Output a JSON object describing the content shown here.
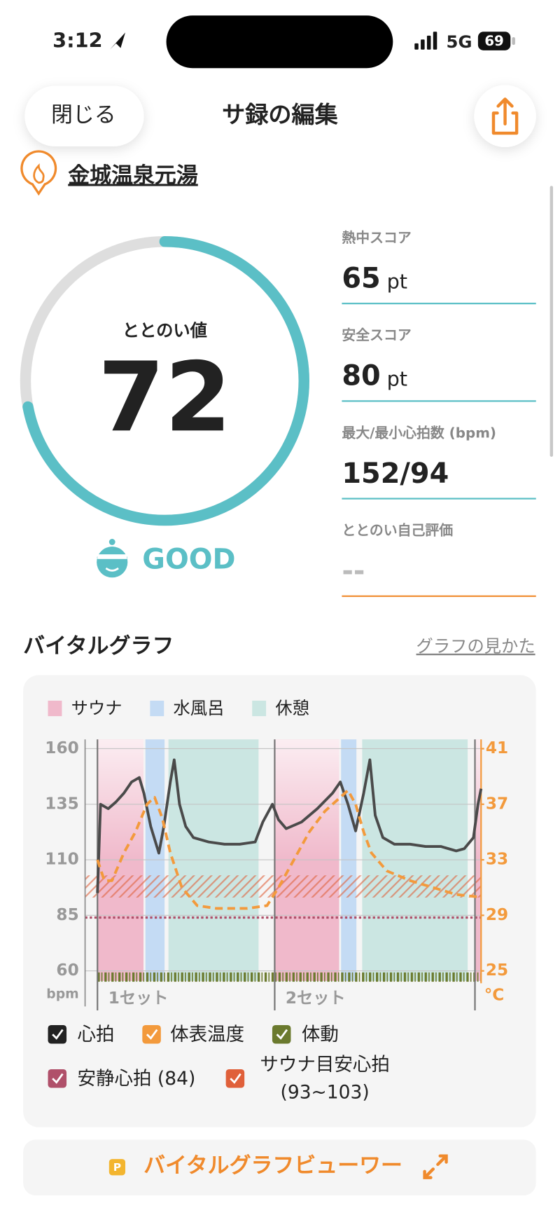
{
  "status_bar": {
    "time": "3:12",
    "network": "5G",
    "battery": "69"
  },
  "header": {
    "close_button": "閉じる",
    "title": "サ録の編集"
  },
  "venue": "金城温泉元湯",
  "totonoi": {
    "label": "ととのい値",
    "value": 72,
    "rating": "GOOD"
  },
  "stats": [
    {
      "label": "熱中スコア",
      "value": 65,
      "unit": "pt"
    },
    {
      "label": "安全スコア",
      "value": 80,
      "unit": "pt"
    },
    {
      "label": "最大/最小心拍数 (bpm)",
      "value": "152/94"
    },
    {
      "label": "ととのい自己評価",
      "value": "--"
    }
  ],
  "vital_graph": {
    "title": "バイタルグラフ",
    "help_link": "グラフの見かた",
    "phase_legend": [
      {
        "name": "サウナ",
        "color": "#f0b9cb"
      },
      {
        "name": "水風呂",
        "color": "#c4dbf4"
      },
      {
        "name": "休憩",
        "color": "#cbe6e2"
      }
    ],
    "chart": {
      "type": "line",
      "ylim": [
        60,
        160
      ],
      "yticks": [
        60,
        85,
        110,
        135,
        160
      ],
      "y_label": "bpm",
      "y2lim": [
        25,
        41
      ],
      "y2ticks": [
        25,
        29,
        33,
        37,
        41
      ],
      "y2_label": "°C",
      "xlim": [
        0,
        100
      ],
      "sets": [
        0,
        46.2,
        98.4
      ],
      "set_labels": [
        "1セット",
        "2セット",
        null
      ],
      "phases": [
        {
          "phase": 0,
          "start": 0,
          "end": 12
        },
        {
          "phase": 1,
          "start": 12.5,
          "end": 17.5
        },
        {
          "phase": 2,
          "start": 18.5,
          "end": 42
        },
        {
          "phase": 0,
          "start": 46,
          "end": 63
        },
        {
          "phase": 1,
          "start": 63.5,
          "end": 67.5
        },
        {
          "phase": 2,
          "start": 69,
          "end": 96.5
        },
        {
          "phase": 0,
          "start": 98.5,
          "end": 100
        }
      ],
      "series": [
        {
          "name": "心拍",
          "color": "#4a4a4a",
          "checkbox_color": "#222222",
          "x": [
            0,
            0.8,
            2.8,
            4.8,
            6.9,
            8.9,
            10.9,
            12.1,
            13.9,
            16.0,
            17.3,
            19.0,
            20.0,
            21.4,
            23.0,
            25.0,
            29.0,
            33.1,
            37.1,
            41.1,
            43.1,
            45.6,
            47.2,
            49.2,
            53.2,
            57.3,
            61.3,
            63.3,
            65.3,
            67.3,
            69.4,
            71.0,
            72.4,
            74.4,
            77.4,
            81.5,
            85.5,
            89.5,
            93.5,
            95.6,
            98.0,
            99.2,
            100
          ],
          "values": [
            95,
            135,
            133,
            136,
            140,
            145,
            147,
            140,
            125,
            113,
            125,
            145,
            155,
            135,
            125,
            120,
            118,
            117,
            117,
            118,
            127,
            135,
            128,
            124,
            127,
            133,
            140,
            145,
            135,
            123,
            140,
            155,
            130,
            120,
            117,
            117,
            116,
            116,
            114,
            115,
            120,
            135,
            142
          ]
        },
        {
          "name": "体表温度",
          "color": "#f39a3c",
          "checkbox_color": "#f39a3c",
          "axis": "y2",
          "x": [
            0,
            1.8,
            3.8,
            6.9,
            9.9,
            12.9,
            14.9,
            16.9,
            19.0,
            22.0,
            26.0,
            31.0,
            39.1,
            44.2,
            47.2,
            51.2,
            55.2,
            59.3,
            63.3,
            65.3,
            67.3,
            69.4,
            71.4,
            75.4,
            81.5,
            87.5,
            93.5,
            100
          ],
          "values": [
            33,
            31.5,
            31.5,
            33.5,
            35,
            37,
            37.5,
            36,
            33.5,
            31,
            29.7,
            29.5,
            29.5,
            29.7,
            31,
            33,
            35,
            36.5,
            37.5,
            38,
            37,
            35,
            33.5,
            32.2,
            31.5,
            31,
            30.5,
            30.3
          ]
        }
      ],
      "body_motion": {
        "name": "体動",
        "color": "#6b7a2e"
      },
      "resting_hr": {
        "name": "安静心拍 (84)",
        "value": 84,
        "color": "#b0506a"
      },
      "target_hr": {
        "name": "サウナ目安心拍",
        "range_label": "(93~103)",
        "low": 93,
        "high": 103,
        "color": "#e0603a"
      }
    }
  },
  "viewer_button": "バイタルグラフビューワー"
}
